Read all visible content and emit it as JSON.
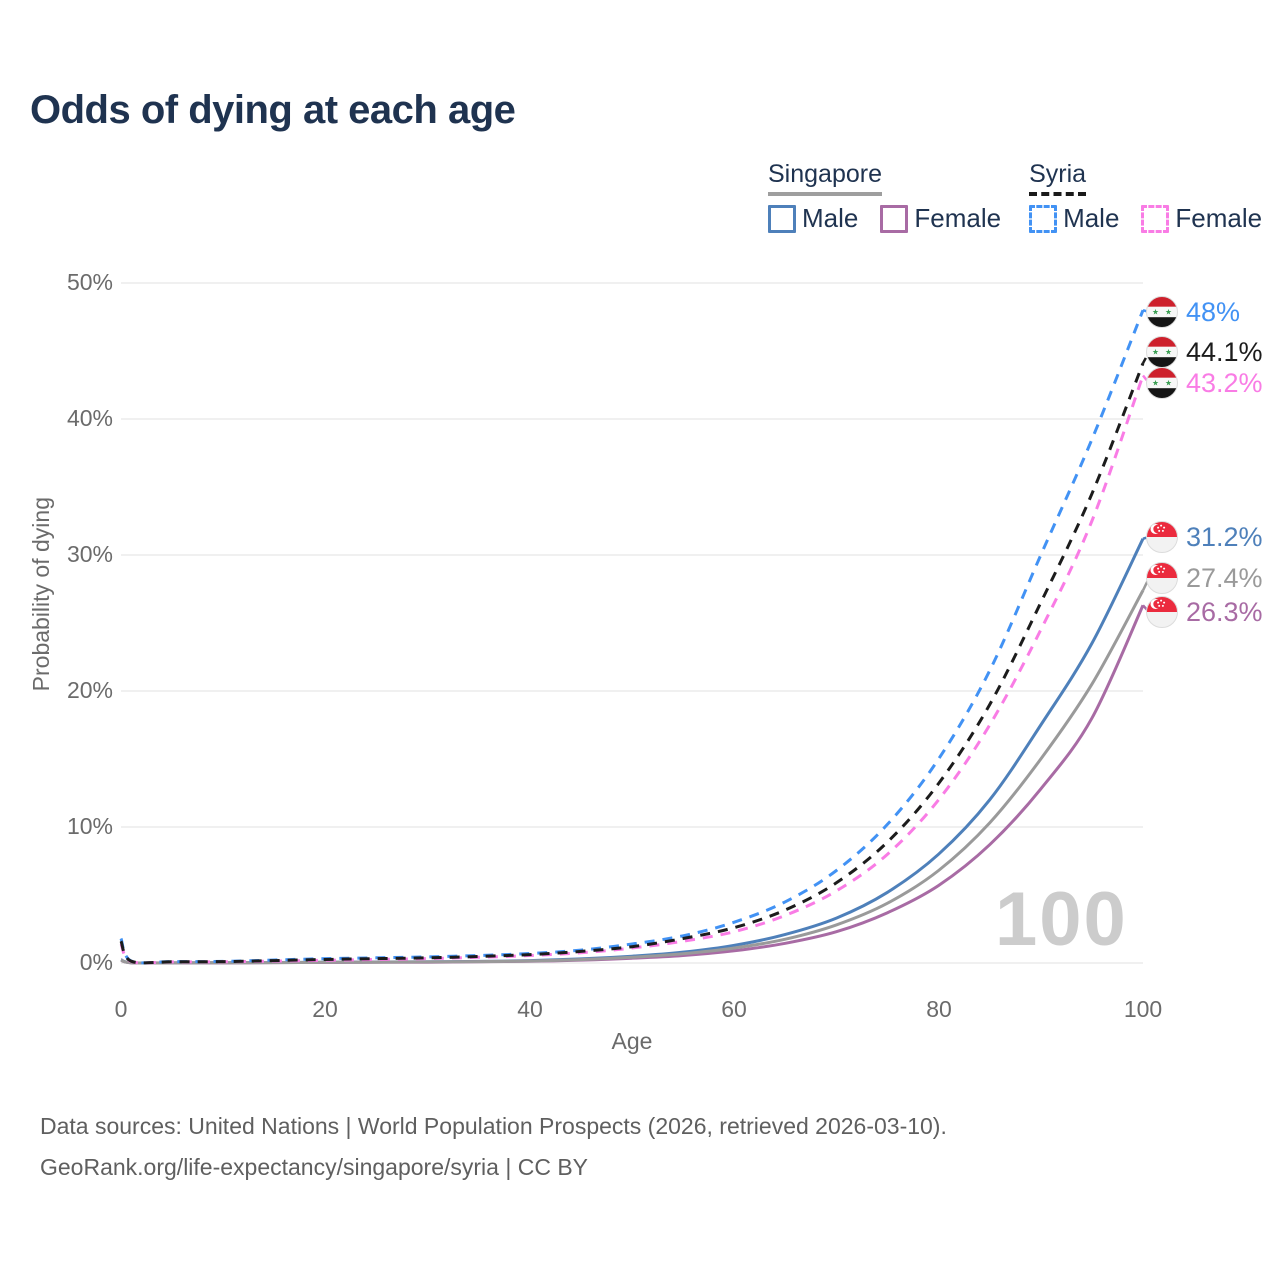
{
  "header": {
    "title": "Odds of dying at each age"
  },
  "legend": {
    "groups": [
      {
        "name": "Singapore",
        "line_style": "solid",
        "line_color": "#9e9e9e",
        "items": [
          {
            "label": "Male",
            "color": "#4e80ba",
            "dash": false
          },
          {
            "label": "Female",
            "color": "#a86ba4",
            "dash": false
          }
        ]
      },
      {
        "name": "Syria",
        "line_style": "dashed",
        "line_color": "#1a1a1a",
        "items": [
          {
            "label": "Male",
            "color": "#4292f4",
            "dash": true
          },
          {
            "label": "Female",
            "color": "#f97ce5",
            "dash": true
          }
        ]
      }
    ]
  },
  "chart_data": {
    "type": "line",
    "title": "Odds of dying at each age",
    "xlabel": "Age",
    "ylabel": "Probability of dying",
    "xlim": [
      0,
      100
    ],
    "ylim": [
      0,
      50
    ],
    "grid": "horizontal",
    "legend_position": "top-right",
    "age_indicator": "100",
    "xticks": [
      "0",
      "20",
      "40",
      "60",
      "80",
      "100"
    ],
    "xtick_values": [
      0,
      20,
      40,
      60,
      80,
      100
    ],
    "yticks": [
      "0%",
      "10%",
      "20%",
      "30%",
      "40%",
      "50%"
    ],
    "ytick_values": [
      0,
      10,
      20,
      30,
      40,
      50
    ],
    "x": [
      0,
      1,
      5,
      10,
      15,
      20,
      25,
      30,
      35,
      40,
      45,
      50,
      55,
      60,
      65,
      70,
      75,
      80,
      85,
      90,
      95,
      100
    ],
    "series": [
      {
        "id": "singapore-male",
        "name": "Singapore Male",
        "country": "Singapore",
        "sex": "Male",
        "color": "#4e80ba",
        "dash": false,
        "end_value": 31.2,
        "end_label": "31.2%",
        "values": [
          0.25,
          0.02,
          0.01,
          0.02,
          0.04,
          0.06,
          0.07,
          0.09,
          0.12,
          0.18,
          0.3,
          0.5,
          0.8,
          1.3,
          2.1,
          3.3,
          5.2,
          8.0,
          12.0,
          17.5,
          23.5,
          31.2
        ]
      },
      {
        "id": "singapore-female",
        "name": "Singapore Female",
        "country": "Singapore",
        "sex": "Female",
        "color": "#a86ba4",
        "dash": false,
        "end_value": 26.3,
        "end_label": "26.3%",
        "values": [
          0.2,
          0.02,
          0.01,
          0.01,
          0.03,
          0.04,
          0.05,
          0.06,
          0.09,
          0.13,
          0.21,
          0.35,
          0.55,
          0.9,
          1.45,
          2.3,
          3.7,
          5.7,
          8.7,
          12.8,
          18.0,
          26.3
        ]
      },
      {
        "id": "singapore-both",
        "name": "Singapore Both sexes",
        "country": "Singapore",
        "sex": "Both",
        "color": "#9a9a9a",
        "dash": false,
        "end_value": 27.4,
        "end_label": "27.4%",
        "values": [
          0.22,
          0.02,
          0.01,
          0.02,
          0.03,
          0.05,
          0.06,
          0.08,
          0.1,
          0.15,
          0.25,
          0.42,
          0.68,
          1.1,
          1.75,
          2.8,
          4.4,
          6.8,
          10.3,
          15.0,
          20.5,
          27.4
        ]
      },
      {
        "id": "syria-male",
        "name": "Syria Male",
        "country": "Syria",
        "sex": "Male",
        "color": "#4292f4",
        "dash": true,
        "end_value": 48.0,
        "end_label": "48%",
        "values": [
          1.8,
          0.15,
          0.1,
          0.12,
          0.22,
          0.32,
          0.38,
          0.45,
          0.55,
          0.7,
          0.95,
          1.4,
          2.0,
          3.0,
          4.5,
          6.8,
          10.2,
          15.0,
          21.5,
          30.0,
          38.5,
          48.0
        ]
      },
      {
        "id": "syria-female",
        "name": "Syria Female",
        "country": "Syria",
        "sex": "Female",
        "color": "#f97ce5",
        "dash": true,
        "end_value": 43.2,
        "end_label": "43.2%",
        "values": [
          1.4,
          0.11,
          0.08,
          0.09,
          0.14,
          0.2,
          0.26,
          0.32,
          0.42,
          0.55,
          0.75,
          1.1,
          1.6,
          2.3,
          3.5,
          5.3,
          8.0,
          12.0,
          17.5,
          24.5,
          32.5,
          43.2
        ]
      },
      {
        "id": "syria-both",
        "name": "Syria Both sexes",
        "country": "Syria",
        "sex": "Both",
        "color": "#1c1c1c",
        "dash": true,
        "end_value": 44.1,
        "end_label": "44.1%",
        "values": [
          1.6,
          0.13,
          0.09,
          0.1,
          0.18,
          0.26,
          0.32,
          0.38,
          0.48,
          0.62,
          0.85,
          1.2,
          1.8,
          2.6,
          3.9,
          5.9,
          8.9,
          13.2,
          19.0,
          26.5,
          34.5,
          44.1
        ]
      }
    ]
  },
  "footer": {
    "line1": "Data sources: United Nations | World Population Prospects (2026, retrieved 2026-03-10).",
    "line2": "GeoRank.org/life-expectancy/singapore/syria | CC BY"
  }
}
